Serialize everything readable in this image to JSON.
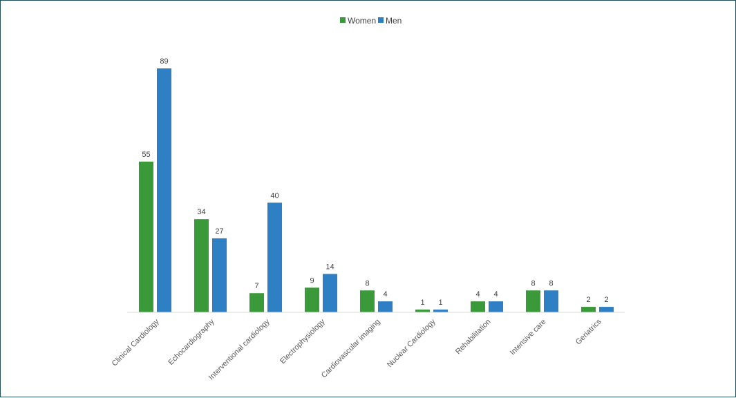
{
  "chart_data": {
    "type": "bar",
    "title": "",
    "xlabel": "",
    "ylabel": "",
    "ylim": [
      0,
      89
    ],
    "grid": false,
    "legend_position": "top-center",
    "categories": [
      "Clinical Cardiology",
      "Echocardiography",
      "Interventional cardiology",
      "Electrophysiology",
      "Cardiovascular imaging",
      "Nuclear Cardiology",
      "Rehabilitation",
      "Intensive care",
      "Geriatrics"
    ],
    "series": [
      {
        "name": "Women",
        "color": "#3a9a3a",
        "values": [
          55,
          34,
          7,
          9,
          8,
          1,
          4,
          8,
          2
        ]
      },
      {
        "name": "Men",
        "color": "#2f7fc4",
        "values": [
          89,
          27,
          40,
          14,
          4,
          1,
          4,
          8,
          2
        ]
      }
    ]
  }
}
